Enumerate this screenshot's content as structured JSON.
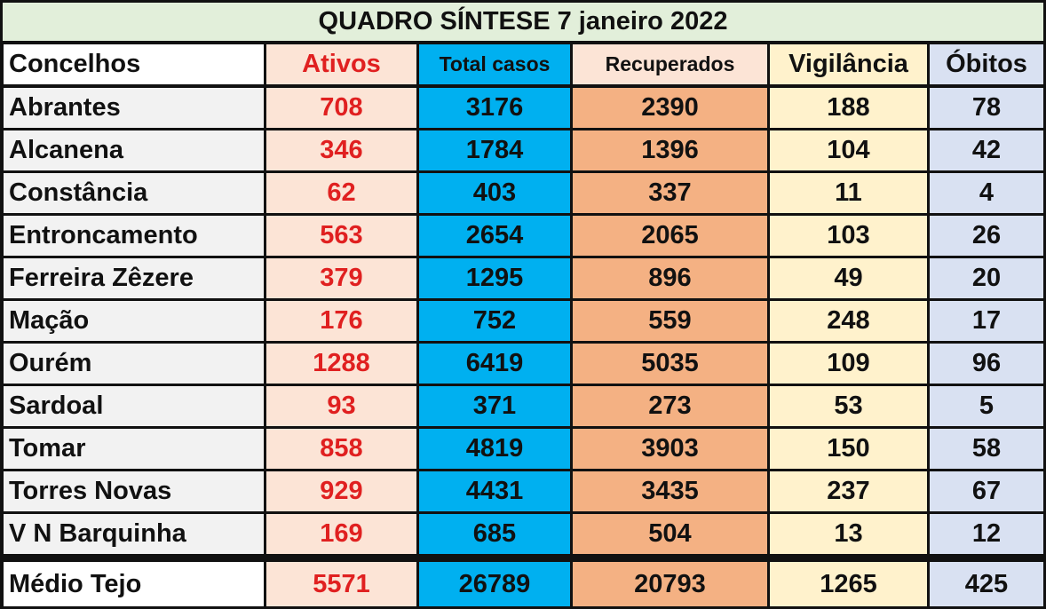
{
  "title": "QUADRO SÍNTESE 7 janeiro 2022",
  "table": {
    "headers": [
      "Concelhos",
      "Ativos",
      "Total casos",
      "Recuperados",
      "Vigilância",
      "Óbitos"
    ],
    "rows": [
      [
        "Abrantes",
        708,
        3176,
        2390,
        188,
        78
      ],
      [
        "Alcanena",
        346,
        1784,
        1396,
        104,
        42
      ],
      [
        "Constância",
        62,
        403,
        337,
        11,
        4
      ],
      [
        "Entroncamento",
        563,
        2654,
        2065,
        103,
        26
      ],
      [
        "Ferreira Zêzere",
        379,
        1295,
        896,
        49,
        20
      ],
      [
        "Mação",
        176,
        752,
        559,
        248,
        17
      ],
      [
        "Ourém",
        1288,
        6419,
        5035,
        109,
        96
      ],
      [
        "Sardoal",
        93,
        371,
        273,
        53,
        5
      ],
      [
        "Tomar",
        858,
        4819,
        3903,
        150,
        58
      ],
      [
        "Torres Novas",
        929,
        4431,
        3435,
        237,
        67
      ],
      [
        "V N Barquinha",
        169,
        685,
        504,
        13,
        12
      ]
    ],
    "total": [
      "Médio Tejo",
      5571,
      26789,
      20793,
      1265,
      425
    ]
  }
}
